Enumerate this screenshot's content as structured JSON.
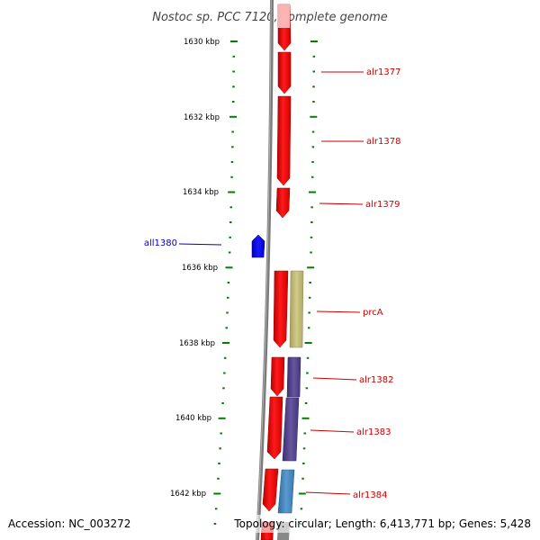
{
  "title": "Nostoc sp. PCC 7120, complete genome",
  "accession_text": "Accession: NC_003272",
  "topology_text": "Topology: circular; Length: 6,413,771 bp; Genes: 5,428",
  "kbp_ticks": [
    "1630 kbp",
    "1632 kbp",
    "1634 kbp",
    "1636 kbp",
    "1638 kbp",
    "1640 kbp",
    "1642 kbp"
  ],
  "colors": {
    "forward_gene": "#ff0000",
    "reverse_gene": "#0000ff",
    "label_forward": "#cc0000",
    "label_reverse": "#0000cc",
    "tick": "#008000",
    "backbone": "#808080",
    "prcA_feature": "#c8c078",
    "alr1382_feature": "#5a4a90",
    "alr1384_feature": "#4a88c0"
  },
  "genes": [
    {
      "name": "",
      "strand": "forward"
    },
    {
      "name": "alr1377",
      "strand": "forward"
    },
    {
      "name": "alr1378",
      "strand": "forward"
    },
    {
      "name": "alr1379",
      "strand": "forward"
    },
    {
      "name": "all1380",
      "strand": "reverse"
    },
    {
      "name": "prcA",
      "strand": "forward"
    },
    {
      "name": "alr1382",
      "strand": "forward"
    },
    {
      "name": "alr1383",
      "strand": "forward"
    },
    {
      "name": "alr1384",
      "strand": "forward"
    }
  ]
}
